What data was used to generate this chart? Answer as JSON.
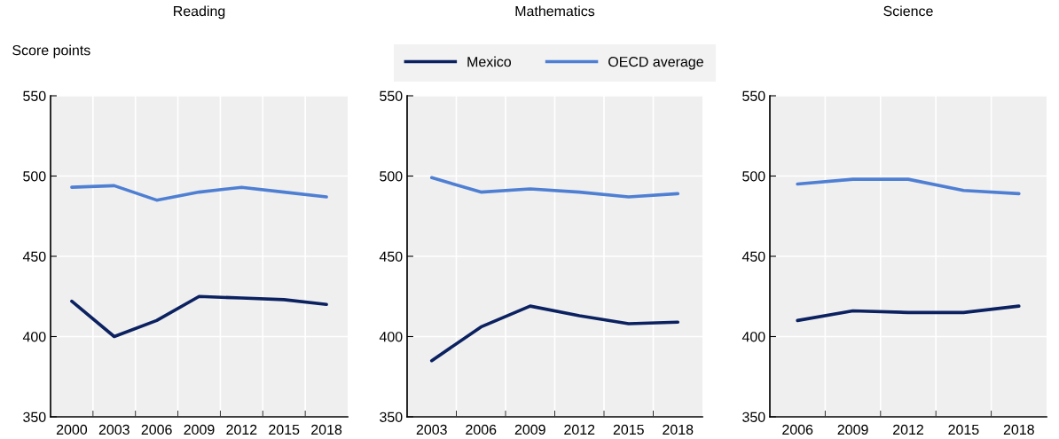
{
  "chart_data": [
    {
      "type": "line",
      "title": "Reading",
      "ylabel": "Score points",
      "categories": [
        "2000",
        "2003",
        "2006",
        "2009",
        "2012",
        "2015",
        "2018"
      ],
      "series": [
        {
          "color": "#0b2160",
          "values": [
            422,
            400,
            410,
            425,
            424,
            423,
            420
          ]
        },
        {
          "color": "#4e7fd3",
          "values": [
            493,
            494,
            485,
            490,
            493,
            490,
            487
          ]
        }
      ],
      "ylim": [
        350,
        550
      ],
      "yticks": [
        350,
        400,
        450,
        500,
        550
      ],
      "grid": true,
      "legend": false,
      "marker": "none",
      "line_style": "solid"
    },
    {
      "type": "line",
      "title": "Mathematics",
      "categories": [
        "2003",
        "2006",
        "2009",
        "2012",
        "2015",
        "2018"
      ],
      "series": [
        {
          "name": "Mexico",
          "color": "#0b2160",
          "values": [
            385,
            406,
            419,
            413,
            408,
            409
          ]
        },
        {
          "name": "OECD average",
          "color": "#4e7fd3",
          "values": [
            499,
            490,
            492,
            490,
            487,
            489
          ]
        }
      ],
      "ylim": [
        350,
        550
      ],
      "yticks": [
        350,
        400,
        450,
        500,
        550
      ],
      "grid": true,
      "legend": "top",
      "marker": "none",
      "line_style": "solid"
    },
    {
      "type": "line",
      "title": "Science",
      "categories": [
        "2006",
        "2009",
        "2012",
        "2015",
        "2018"
      ],
      "series": [
        {
          "color": "#0b2160",
          "values": [
            410,
            416,
            415,
            415,
            419
          ]
        },
        {
          "color": "#4e7fd3",
          "values": [
            495,
            498,
            498,
            491,
            489
          ]
        }
      ],
      "ylim": [
        350,
        550
      ],
      "yticks": [
        350,
        400,
        450,
        500,
        550
      ],
      "grid": true,
      "legend": false,
      "marker": "none",
      "line_style": "solid"
    }
  ]
}
